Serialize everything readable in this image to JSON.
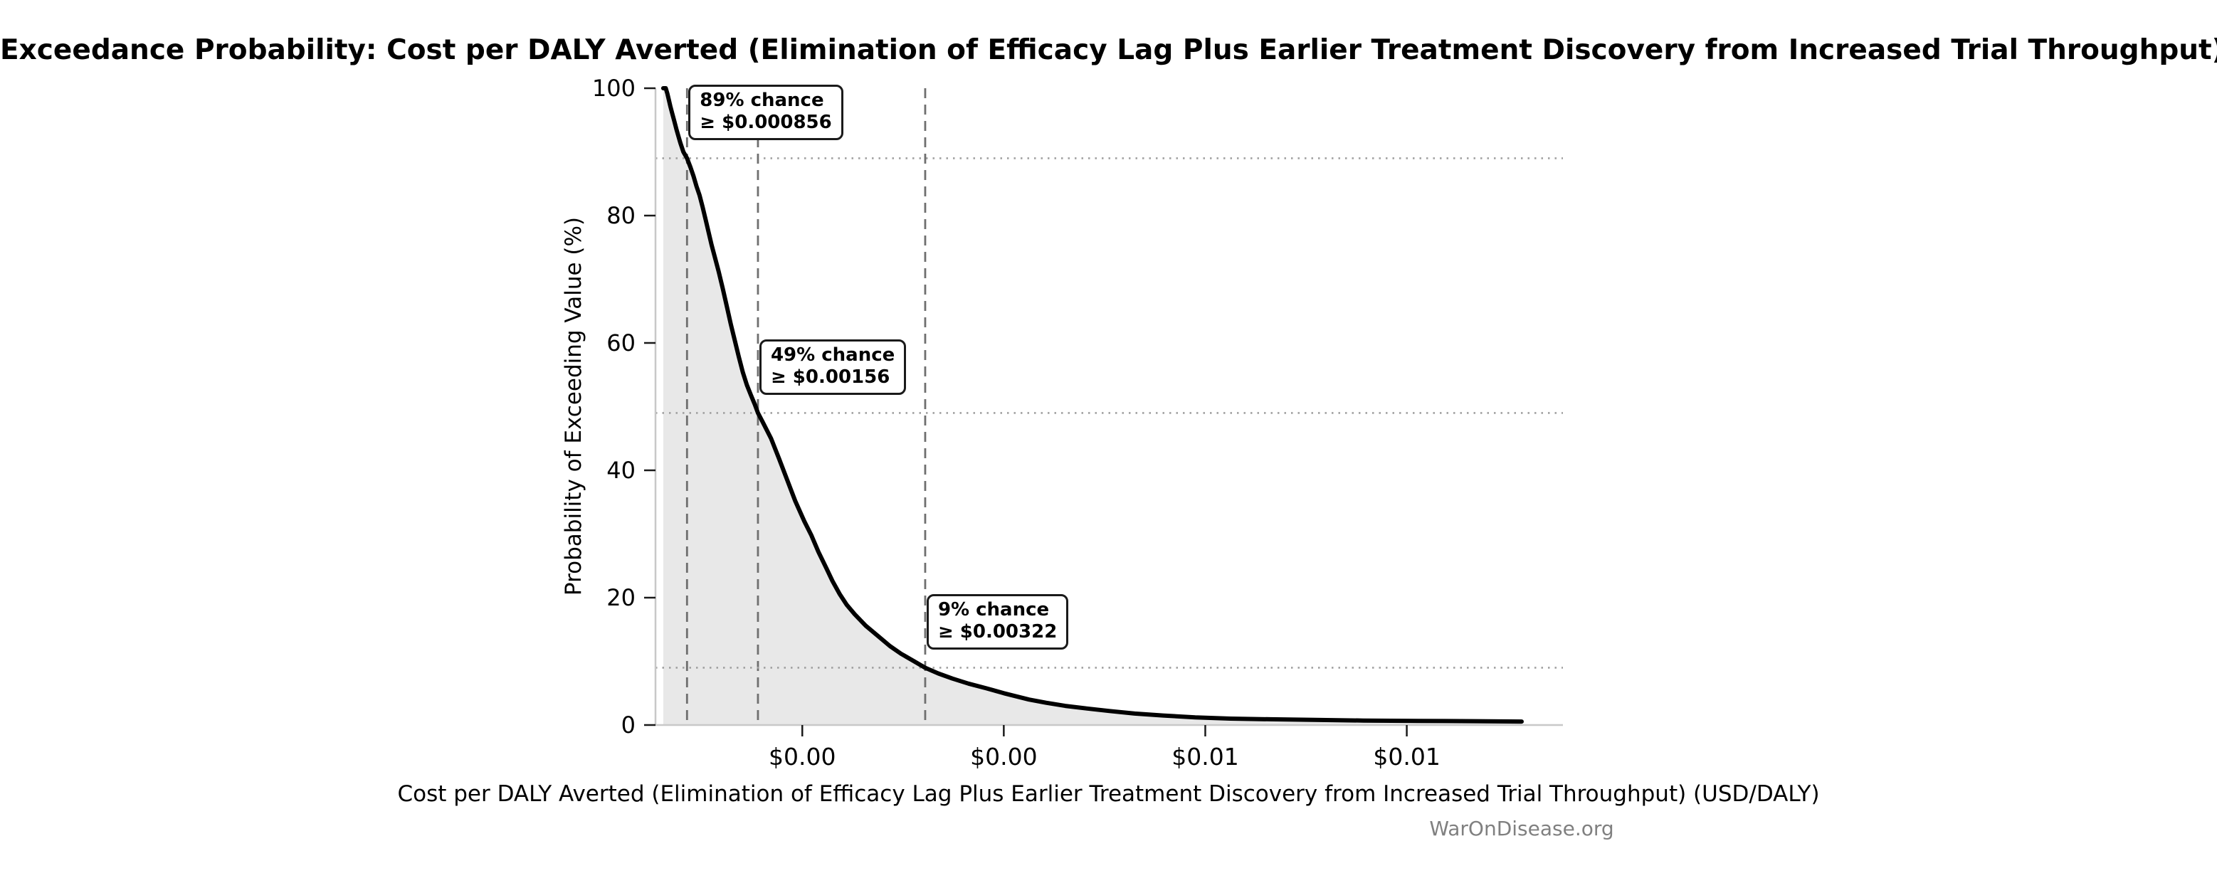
{
  "watermark": {
    "text": "WarOnDisease.org",
    "color": "#808080"
  },
  "chart_data": {
    "type": "line",
    "title": "Exceedance Probability: Cost per DALY Averted (Elimination of Efficacy Lag Plus Earlier Treatment Discovery from Increased Trial Throughput)",
    "xlabel": "Cost per DALY Averted (Elimination of Efficacy Lag Plus Earlier Treatment Discovery from Increased Trial Throughput) (USD/DALY)",
    "ylabel": "Probability of Exceeding Value (%)",
    "xlim": [
      0.000543,
      0.00955
    ],
    "ylim": [
      0,
      100
    ],
    "grid": "dotted horizontal reference lines at annotation probabilities; dashed vertical reference lines at annotation thresholds",
    "legend": "none",
    "x_ticks": [
      {
        "value": 0.002,
        "label": "$0.00"
      },
      {
        "value": 0.004,
        "label": "$0.00"
      },
      {
        "value": 0.006,
        "label": "$0.01"
      },
      {
        "value": 0.008,
        "label": "$0.01"
      }
    ],
    "y_ticks": [
      {
        "value": 0,
        "label": "0"
      },
      {
        "value": 20,
        "label": "20"
      },
      {
        "value": 40,
        "label": "40"
      },
      {
        "value": 60,
        "label": "60"
      },
      {
        "value": 80,
        "label": "80"
      },
      {
        "value": 100,
        "label": "100"
      }
    ],
    "annotations": [
      {
        "probability_pct": 89,
        "threshold_usd": 0.000856,
        "line1": "89% chance",
        "line2": "≥ $0.000856"
      },
      {
        "probability_pct": 49,
        "threshold_usd": 0.00156,
        "line1": "49% chance",
        "line2": "≥ $0.00156"
      },
      {
        "probability_pct": 9,
        "threshold_usd": 0.00322,
        "line1": "9% chance",
        "line2": "≥ $0.00322"
      }
    ],
    "series": [
      {
        "name": "exceedance-curve",
        "points": [
          [
            0.00062,
            100
          ],
          [
            0.000645,
            100
          ],
          [
            0.00066,
            99.2
          ],
          [
            0.000675,
            98.2
          ],
          [
            0.00069,
            97.2
          ],
          [
            0.00071,
            96.0
          ],
          [
            0.00073,
            94.8
          ],
          [
            0.00075,
            93.6
          ],
          [
            0.00077,
            92.5
          ],
          [
            0.00079,
            91.4
          ],
          [
            0.00082,
            90.0
          ],
          [
            0.000856,
            89.0
          ],
          [
            0.00089,
            87.6
          ],
          [
            0.00092,
            86.2
          ],
          [
            0.00095,
            84.6
          ],
          [
            0.00098,
            83.2
          ],
          [
            0.00101,
            81.4
          ],
          [
            0.00104,
            79.4
          ],
          [
            0.00107,
            77.4
          ],
          [
            0.0011,
            75.4
          ],
          [
            0.00113,
            73.6
          ],
          [
            0.00117,
            71.2
          ],
          [
            0.00121,
            68.6
          ],
          [
            0.00125,
            65.8
          ],
          [
            0.00129,
            63.0
          ],
          [
            0.00133,
            60.4
          ],
          [
            0.00137,
            57.8
          ],
          [
            0.00141,
            55.4
          ],
          [
            0.00145,
            53.4
          ],
          [
            0.00149,
            51.8
          ],
          [
            0.00153,
            50.3
          ],
          [
            0.00156,
            49.0
          ],
          [
            0.00161,
            47.5
          ],
          [
            0.00169,
            45.0
          ],
          [
            0.00177,
            41.8
          ],
          [
            0.00185,
            38.5
          ],
          [
            0.00193,
            35.2
          ],
          [
            0.00202,
            32.0
          ],
          [
            0.00209,
            29.8
          ],
          [
            0.00216,
            27.2
          ],
          [
            0.00224,
            24.6
          ],
          [
            0.0023,
            22.6
          ],
          [
            0.00237,
            20.6
          ],
          [
            0.00244,
            18.9
          ],
          [
            0.00252,
            17.4
          ],
          [
            0.00263,
            15.6
          ],
          [
            0.00275,
            14.0
          ],
          [
            0.00287,
            12.4
          ],
          [
            0.00298,
            11.2
          ],
          [
            0.0031,
            10.1
          ],
          [
            0.00322,
            9.0
          ],
          [
            0.00335,
            8.1
          ],
          [
            0.00349,
            7.3
          ],
          [
            0.00365,
            6.5
          ],
          [
            0.00382,
            5.8
          ],
          [
            0.004,
            5.0
          ],
          [
            0.00425,
            4.0
          ],
          [
            0.00442,
            3.5
          ],
          [
            0.00461,
            3.0
          ],
          [
            0.00482,
            2.6
          ],
          [
            0.00505,
            2.2
          ],
          [
            0.0053,
            1.8
          ],
          [
            0.00558,
            1.5
          ],
          [
            0.0059,
            1.2
          ],
          [
            0.00625,
            1.0
          ],
          [
            0.00664,
            0.9
          ],
          [
            0.00708,
            0.8
          ],
          [
            0.00757,
            0.7
          ],
          [
            0.00812,
            0.65
          ],
          [
            0.00868,
            0.6
          ],
          [
            0.00914,
            0.55
          ]
        ]
      }
    ],
    "colors": {
      "curve": "#000000",
      "fill": "#e8e8e8",
      "dashed_line": "#6f6f6f",
      "dotted_line": "#a0a0a0",
      "spine": "#c8c8c8",
      "tick": "#1a1a1a",
      "text": "#000000"
    }
  }
}
